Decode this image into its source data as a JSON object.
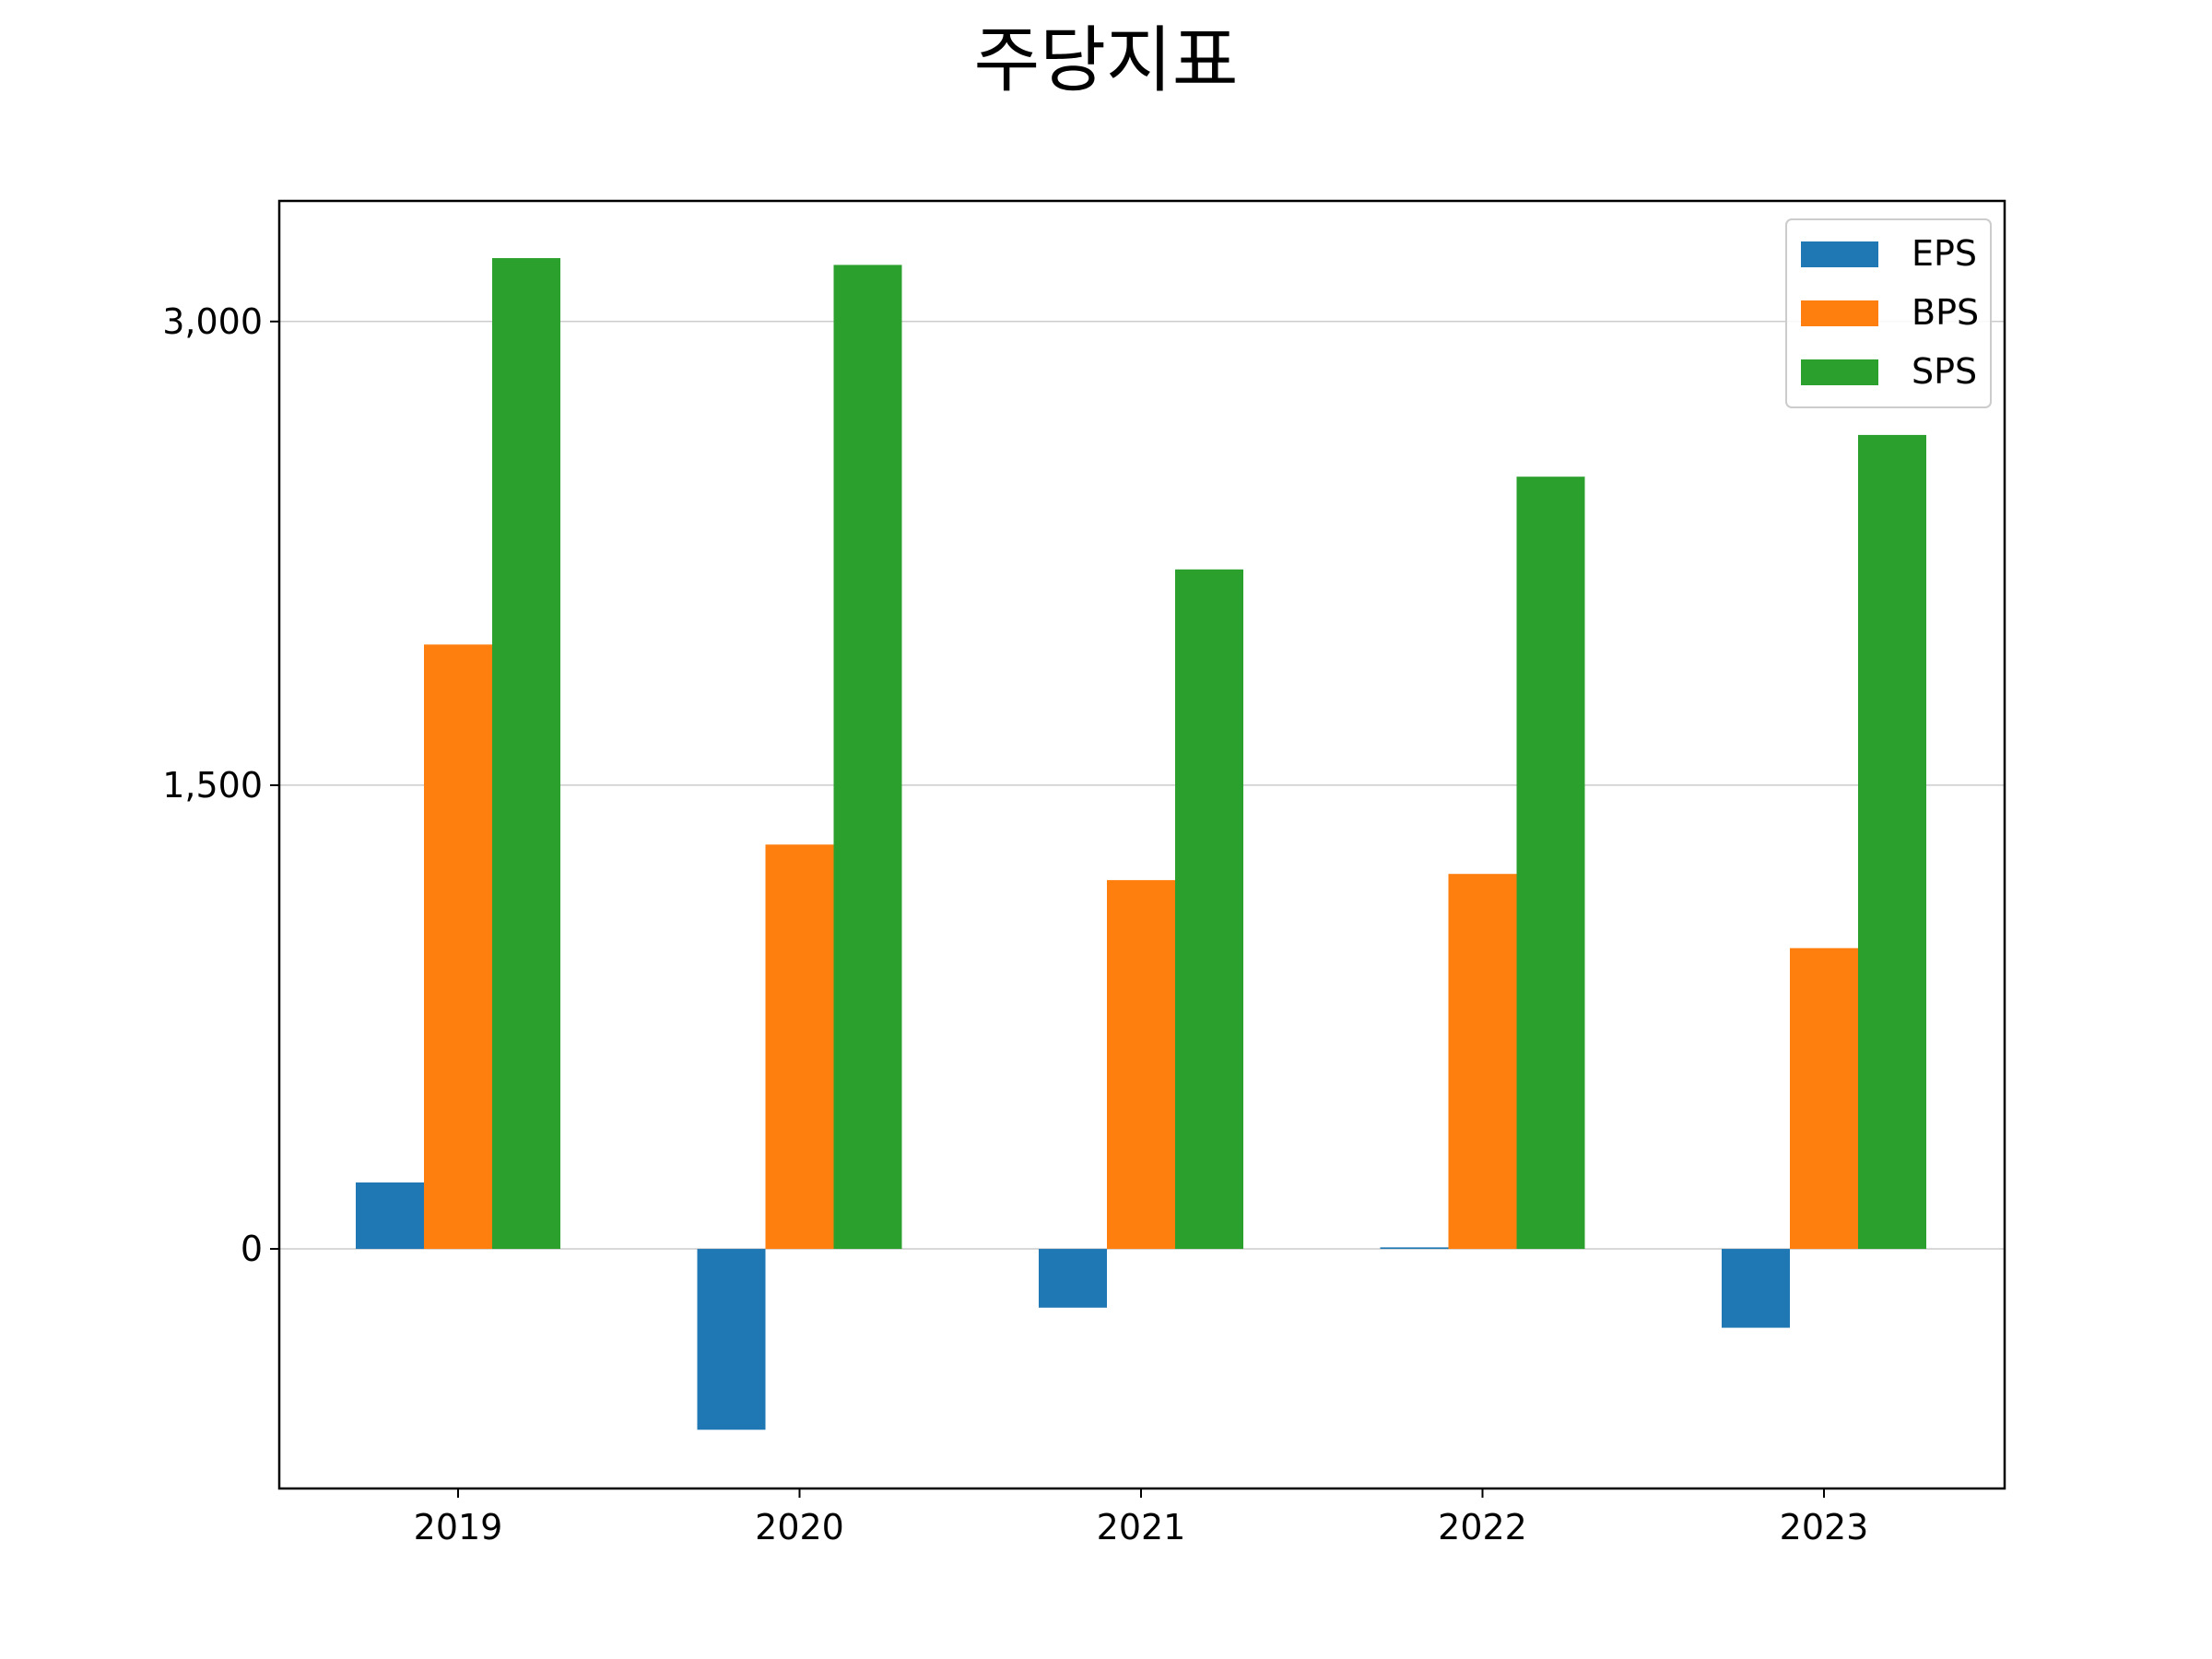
{
  "chart_data": {
    "type": "bar",
    "title": "주당지표",
    "xlabel": "",
    "ylabel": "",
    "categories": [
      "2019",
      "2020",
      "2021",
      "2022",
      "2023"
    ],
    "series": [
      {
        "name": "EPS",
        "color": "#1f77b4",
        "values": [
          215,
          -585,
          -190,
          5,
          -255
        ]
      },
      {
        "name": "BPS",
        "color": "#ff7f0e",
        "values": [
          1955,
          1308,
          1193,
          1213,
          973
        ]
      },
      {
        "name": "SPS",
        "color": "#2ca02c",
        "values": [
          3205,
          3183,
          2198,
          2498,
          2633
        ]
      }
    ],
    "yticks": [
      0,
      1500,
      3000
    ],
    "ytick_labels": [
      "0",
      "1,500",
      "3,000"
    ],
    "ylim": [
      -775,
      3390
    ],
    "grid": "horizontal",
    "legend_position": "top-right"
  }
}
